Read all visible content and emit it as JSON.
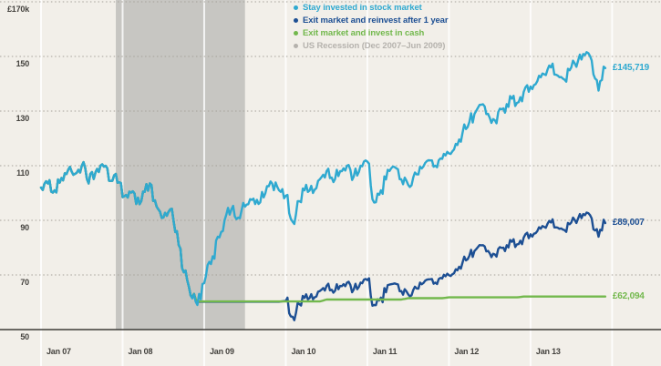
{
  "page": {
    "background": "#f2efe9",
    "text_color": "#44423e"
  },
  "chart_data": {
    "type": "line",
    "title": "",
    "xlabel": "",
    "ylabel": "",
    "y_axis": {
      "unit": "£k",
      "range": [
        50,
        170
      ],
      "ticks": [
        {
          "label": "£170k",
          "value": 170
        },
        {
          "label": "150",
          "value": 150
        },
        {
          "label": "130",
          "value": 130
        },
        {
          "label": "110",
          "value": 110
        },
        {
          "label": "90",
          "value": 90
        },
        {
          "label": "70",
          "value": 70
        },
        {
          "label": "50",
          "value": 50
        }
      ],
      "dotted_grid_values": [
        70,
        90,
        110,
        130,
        150,
        170
      ]
    },
    "x_axis": {
      "start": "Jan 2007",
      "end": "Dec 2013",
      "months_total": 84,
      "ticks": [
        {
          "label": "Jan 07",
          "month": 0
        },
        {
          "label": "Jan 08",
          "month": 12
        },
        {
          "label": "Jan 09",
          "month": 24
        },
        {
          "label": "Jan 10",
          "month": 36
        },
        {
          "label": "Jan 11",
          "month": 48
        },
        {
          "label": "Jan 12",
          "month": 60
        },
        {
          "label": "Jan 13",
          "month": 72
        }
      ],
      "grid_months": [
        0,
        12,
        24,
        36,
        48,
        60,
        72,
        84
      ]
    },
    "grid": {
      "dotted_line_color": "#a6a29a",
      "year_line_color": "rgba(255,255,255,0.8)",
      "axis_line_color": "#3c3b37"
    },
    "recession_band": {
      "label": "US Recession (Dec 2007–Jun 2009)",
      "start_month": 11,
      "end_month": 30,
      "color": "#c7c6c2",
      "legend_color": "#b5b2ad"
    },
    "series": [
      {
        "name": "Stay invested in stock market",
        "color": "#2fa9d0",
        "end_label": "£145,719",
        "end_value": 145.719,
        "values": [
          102,
          103.5,
          101,
          105.5,
          108.5,
          107,
          110,
          103.5,
          107.5,
          110.5,
          104.5,
          107,
          98.5,
          100.5,
          96,
          100.5,
          103.5,
          95,
          91,
          94,
          86,
          71,
          62.5,
          59,
          67,
          74,
          84,
          90,
          94,
          91,
          95,
          97.5,
          96,
          100,
          103.5,
          101,
          99,
          89.5,
          97,
          103,
          100,
          105,
          108,
          104,
          108,
          110,
          106,
          110,
          111.5,
          96.5,
          101,
          108.5,
          109.5,
          105,
          103,
          107.5,
          109,
          112,
          110,
          112.5,
          114.5,
          118,
          122,
          126,
          130,
          132.5,
          127.5,
          125.5,
          131,
          135.5,
          133,
          137,
          139,
          141,
          143.5,
          146,
          143,
          141.5,
          146,
          148.5,
          150.5,
          148.5,
          137.5,
          145.719
        ]
      },
      {
        "name": "Exit market and reinvest after 1 year",
        "color": "#1d4f93",
        "end_label": "£89,007",
        "end_value": 89.007,
        "values": [
          102,
          103.5,
          101,
          105.5,
          108.5,
          107,
          110,
          103.5,
          107.5,
          110.5,
          104.5,
          107,
          98.5,
          100.5,
          96,
          100.5,
          103.5,
          95,
          91,
          94,
          86,
          71,
          62.5,
          60.2,
          60.2,
          60.2,
          60.2,
          60.2,
          60.2,
          60.2,
          60.2,
          60.2,
          60.2,
          60.2,
          60.2,
          60.2,
          60.5,
          54.7,
          59.3,
          62.9,
          61.1,
          64.1,
          66,
          63.5,
          66,
          67.2,
          64.7,
          67.2,
          68.1,
          59,
          61.7,
          66.3,
          66.9,
          64.1,
          62.9,
          65.7,
          66.6,
          68.4,
          67.2,
          68.7,
          69.9,
          72.1,
          74.5,
          77,
          79.4,
          80.9,
          77.9,
          76.7,
          80,
          82.8,
          81.2,
          83.7,
          84.9,
          86.1,
          87.6,
          89.2,
          87.3,
          86.4,
          89.2,
          90.7,
          91.9,
          90.7,
          84,
          89.007
        ]
      },
      {
        "name": "Exit market and invest in cash",
        "color": "#72b84c",
        "end_label": "£62,094",
        "end_value": 62.094,
        "values": [
          102,
          103.5,
          101,
          105.5,
          108.5,
          107,
          110,
          103.5,
          107.5,
          110.5,
          104.5,
          107,
          98.5,
          100.5,
          96,
          100.5,
          103.5,
          95,
          91,
          94,
          86,
          71,
          62.5,
          60.3,
          60.3,
          60.3,
          60.3,
          60.3,
          60.3,
          60.3,
          60.3,
          60.3,
          60.3,
          60.3,
          60.3,
          60.3,
          60.3,
          60.3,
          60.3,
          60.3,
          60.3,
          60.3,
          61,
          61,
          61,
          61,
          61,
          61,
          61,
          61,
          61,
          61,
          61,
          61,
          61.5,
          61.5,
          61.5,
          61.5,
          61.5,
          61.5,
          61.8,
          61.8,
          61.8,
          61.8,
          61.8,
          61.8,
          61.8,
          61.8,
          61.8,
          61.8,
          61.8,
          62.094,
          62.094,
          62.094,
          62.094,
          62.094,
          62.094,
          62.094,
          62.094,
          62.094,
          62.094,
          62.094,
          62.094,
          62.094
        ]
      }
    ],
    "legend": {
      "position": "top-center",
      "items": [
        {
          "label": "Stay invested in stock market",
          "color": "#2fa9d0"
        },
        {
          "label": "Exit market and reinvest after 1 year",
          "color": "#1d4f93"
        },
        {
          "label": "Exit market and invest in cash",
          "color": "#72b84c"
        },
        {
          "label": "US Recession (Dec 2007–Jun 2009)",
          "color": "#b5b2ad"
        }
      ]
    }
  }
}
